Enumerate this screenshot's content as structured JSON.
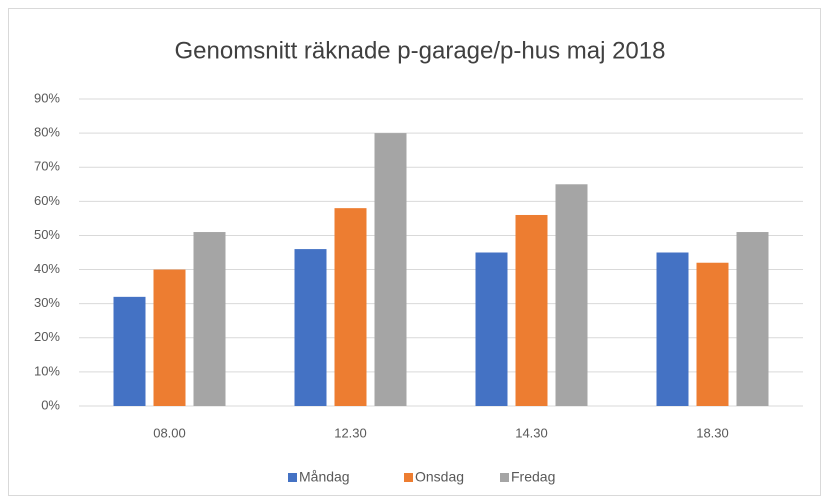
{
  "chart_data": {
    "type": "bar",
    "title": "Genomsnitt räknade p-garage/p-hus maj 2018",
    "categories": [
      "08.00",
      "12.30",
      "14.30",
      "18.30"
    ],
    "series": [
      {
        "name": "Måndag",
        "color": "#4472c4",
        "values": [
          32,
          46,
          45,
          45
        ]
      },
      {
        "name": "Onsdag",
        "color": "#ed7d31",
        "values": [
          40,
          58,
          56,
          42
        ]
      },
      {
        "name": "Fredag",
        "color": "#a5a5a5",
        "values": [
          51,
          80,
          65,
          51
        ]
      }
    ],
    "ylim": [
      0,
      90
    ],
    "yticks": [
      {
        "value": 0,
        "label": "0%"
      },
      {
        "value": 10,
        "label": "10%"
      },
      {
        "value": 20,
        "label": "20%"
      },
      {
        "value": 30,
        "label": "30%"
      },
      {
        "value": 40,
        "label": "40%"
      },
      {
        "value": 50,
        "label": "50%"
      },
      {
        "value": 60,
        "label": "60%"
      },
      {
        "value": 70,
        "label": "70%"
      },
      {
        "value": 80,
        "label": "80%"
      },
      {
        "value": 90,
        "label": "90%"
      }
    ],
    "grid": true,
    "legend": "bottom"
  }
}
